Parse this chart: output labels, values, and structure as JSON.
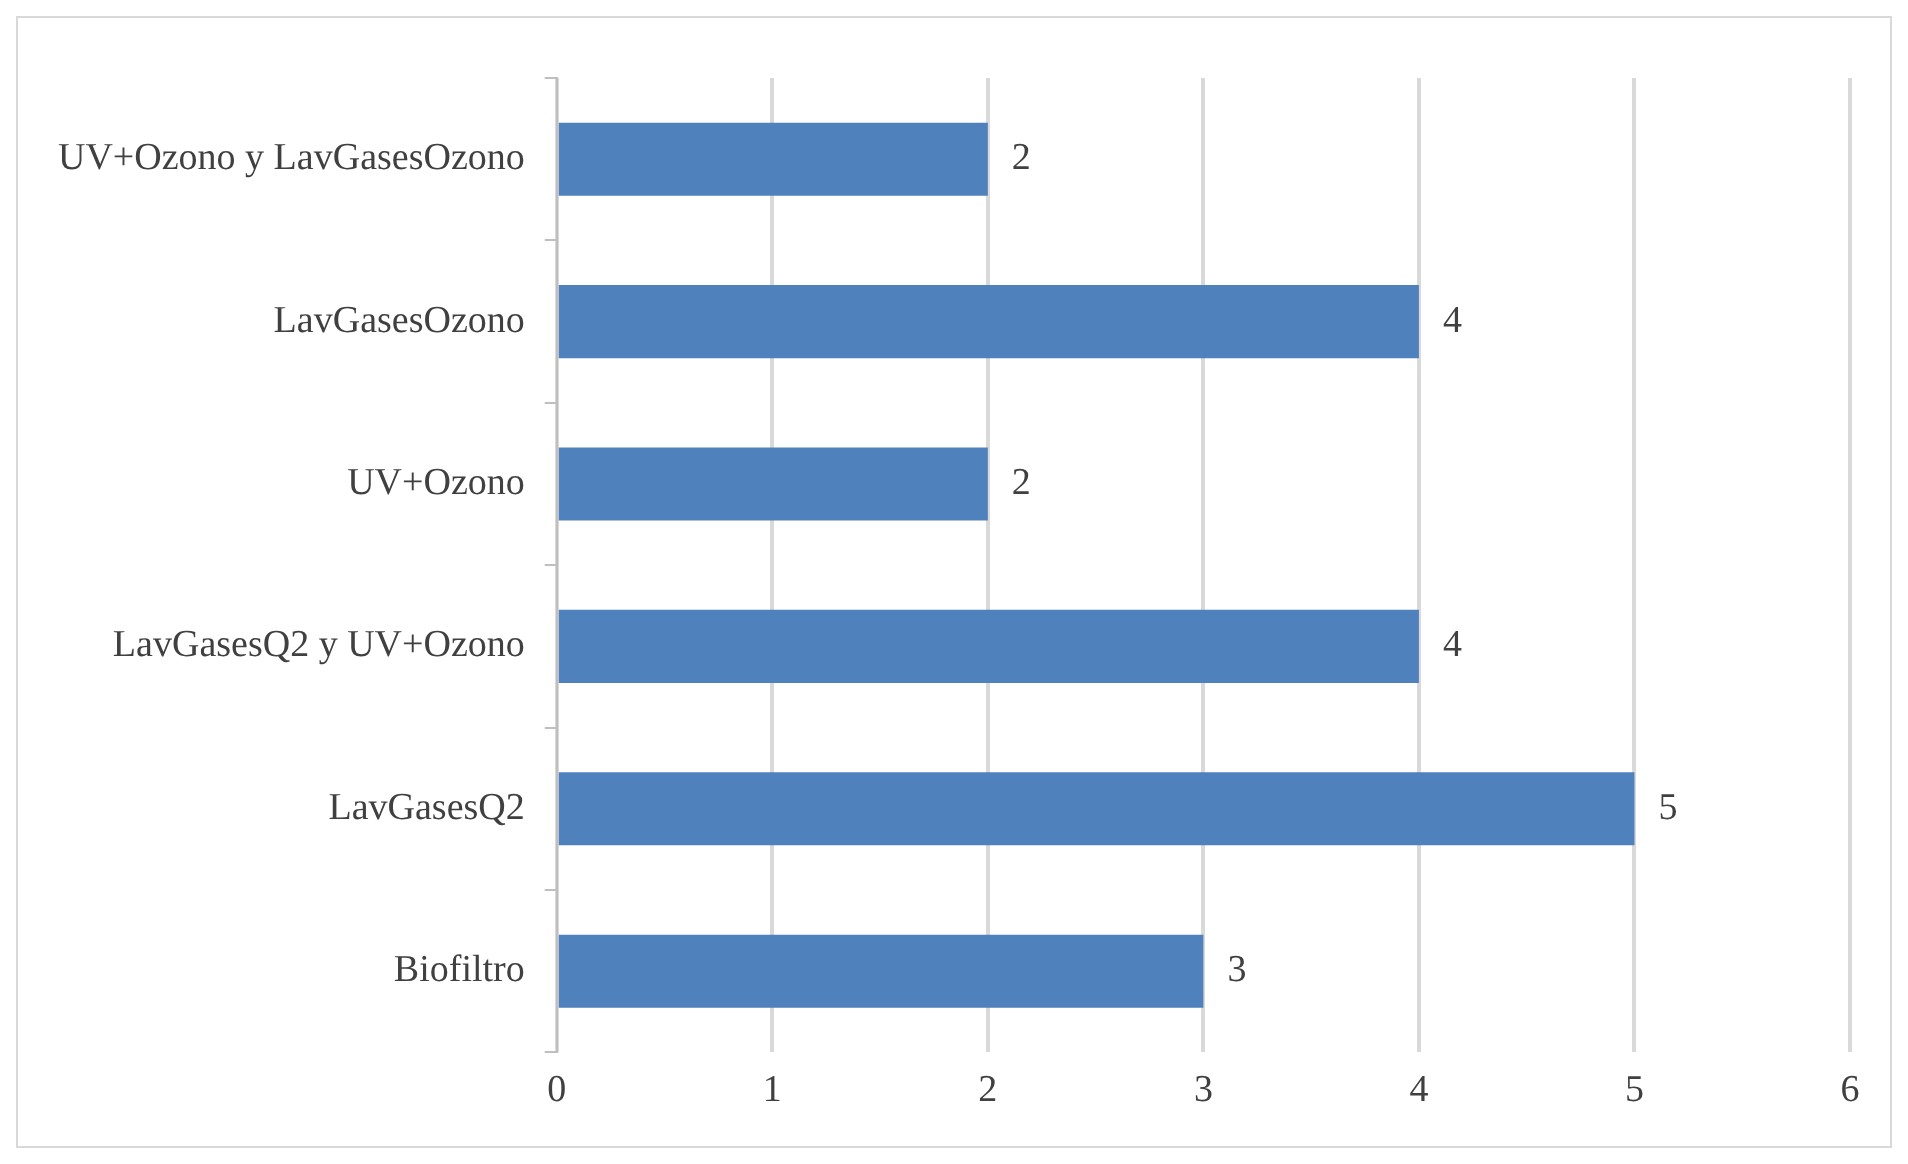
{
  "chart_data": {
    "type": "bar",
    "orientation": "horizontal",
    "categories": [
      "UV+Ozono y LavGasesOzono",
      "LavGasesOzono",
      "UV+Ozono",
      "LavGasesQ2 y UV+Ozono",
      "LavGasesQ2",
      "Biofiltro"
    ],
    "values": [
      2,
      4,
      2,
      4,
      5,
      3
    ],
    "color": "#4f81bd",
    "xlim": [
      0,
      6
    ],
    "xticks": [
      0,
      1,
      2,
      3,
      4,
      5,
      6
    ],
    "grid": "x",
    "data_labels": true,
    "legend": false
  }
}
